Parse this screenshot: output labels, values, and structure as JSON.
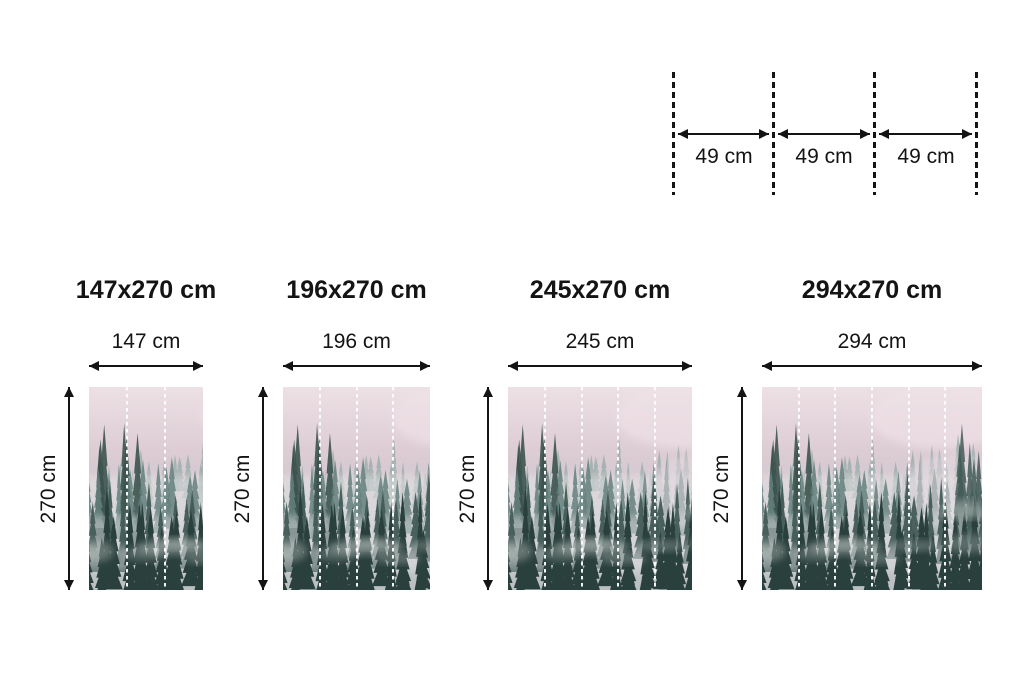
{
  "panel_diagram": {
    "panel_width_cm": 49,
    "segments": [
      {
        "label": "49 cm"
      },
      {
        "label": "49 cm"
      },
      {
        "label": "49 cm"
      }
    ]
  },
  "sizes": [
    {
      "title": "147x270 cm",
      "width_cm": 147,
      "height_cm": 270,
      "width_label": "147 cm",
      "height_label": "270 cm",
      "panels": 3
    },
    {
      "title": "196x270 cm",
      "width_cm": 196,
      "height_cm": 270,
      "width_label": "196 cm",
      "height_label": "270 cm",
      "panels": 4
    },
    {
      "title": "245x270 cm",
      "width_cm": 245,
      "height_cm": 270,
      "width_label": "245 cm",
      "height_label": "270 cm",
      "panels": 5
    },
    {
      "title": "294x270 cm",
      "width_cm": 294,
      "height_cm": 270,
      "width_label": "294 cm",
      "height_label": "270 cm",
      "panels": 6
    }
  ],
  "palette": {
    "text": "#141414",
    "dimension_lines": "#141414",
    "panel_divider": "#ffffff",
    "sky_top": "#eee2e6",
    "sky_mauve": "#ddccd4",
    "sky_low": "#c8c5ca",
    "fog": "#e8e6e8",
    "mist": "#dfe3e2",
    "trees_far": "#97a9a7",
    "trees_mid": "#64807c",
    "trees_near": "#425b56",
    "trees_front": "#2a403c",
    "trees_accent_dark": "#3c534e"
  }
}
